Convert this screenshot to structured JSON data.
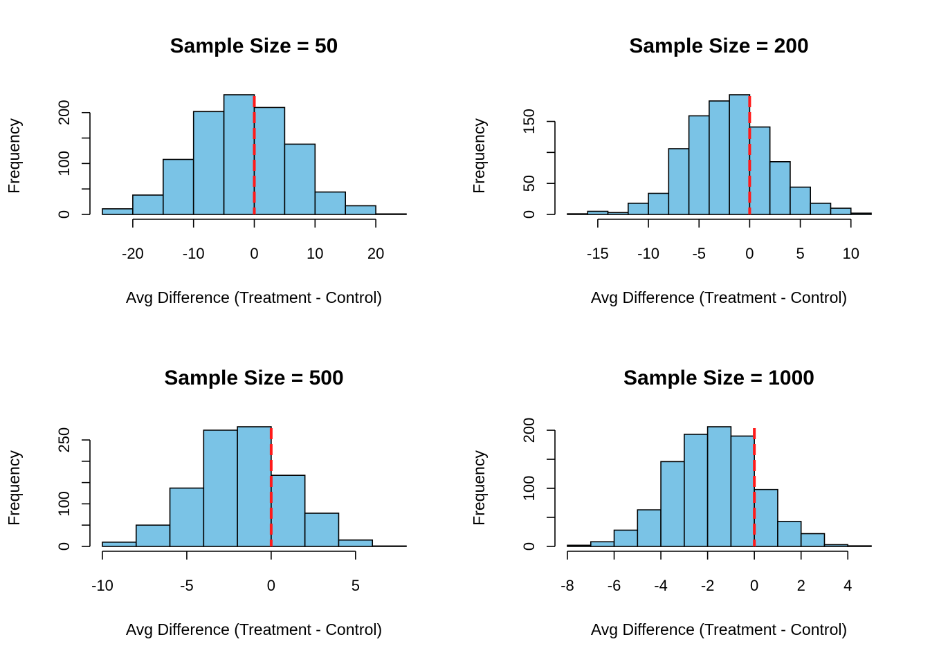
{
  "chart_data": [
    {
      "type": "bar",
      "title": "Sample Size = 50",
      "xlabel": "Avg Difference (Treatment - Control)",
      "ylabel": "Frequency",
      "bin_edges": [
        -25,
        -20,
        -15,
        -10,
        -5,
        0,
        5,
        10,
        15,
        20,
        25
      ],
      "values": [
        11,
        38,
        108,
        202,
        235,
        210,
        138,
        44,
        17,
        1
      ],
      "xticks": [
        -20,
        -10,
        0,
        10,
        20
      ],
      "yticks": [
        0,
        100,
        200
      ],
      "yminor": [
        50,
        150
      ],
      "xlim": [
        -25,
        25
      ],
      "ylim": [
        0,
        235
      ],
      "reference_line": 0
    },
    {
      "type": "bar",
      "title": "Sample Size = 200",
      "xlabel": "Avg Difference (Treatment - Control)",
      "ylabel": "Frequency",
      "bin_edges": [
        -18,
        -16,
        -14,
        -12,
        -10,
        -8,
        -6,
        -4,
        -2,
        0,
        2,
        4,
        6,
        8,
        10,
        12
      ],
      "values": [
        1,
        5,
        3,
        18,
        34,
        106,
        159,
        183,
        193,
        141,
        85,
        44,
        18,
        10,
        2
      ],
      "xticks": [
        -15,
        -10,
        -5,
        0,
        5,
        10
      ],
      "yticks": [
        0,
        50,
        150
      ],
      "yminor": [
        100
      ],
      "xlim": [
        -18,
        12
      ],
      "ylim": [
        0,
        193
      ],
      "reference_line": 0
    },
    {
      "type": "bar",
      "title": "Sample Size = 500",
      "xlabel": "Avg Difference (Treatment - Control)",
      "ylabel": "Frequency",
      "bin_edges": [
        -10,
        -8,
        -6,
        -4,
        -2,
        0,
        2,
        4,
        6,
        8
      ],
      "values": [
        10,
        50,
        137,
        273,
        281,
        167,
        78,
        15,
        1
      ],
      "xticks": [
        -10,
        -5,
        0,
        5
      ],
      "yticks": [
        0,
        100,
        250
      ],
      "yminor": [
        50,
        150,
        200
      ],
      "xlim": [
        -10,
        8
      ],
      "ylim": [
        0,
        281
      ],
      "reference_line": 0
    },
    {
      "type": "bar",
      "title": "Sample Size = 1000",
      "xlabel": "Avg Difference (Treatment - Control)",
      "ylabel": "Frequency",
      "bin_edges": [
        -8,
        -7,
        -6,
        -5,
        -4,
        -3,
        -2,
        -1,
        0,
        1,
        2,
        3,
        4,
        5
      ],
      "values": [
        2,
        8,
        28,
        63,
        146,
        193,
        206,
        190,
        98,
        43,
        22,
        3,
        1
      ],
      "xticks": [
        -8,
        -6,
        -4,
        -2,
        0,
        2,
        4
      ],
      "yticks": [
        0,
        100,
        200
      ],
      "yminor": [
        50,
        150
      ],
      "xlim": [
        -8,
        5
      ],
      "ylim": [
        0,
        206
      ],
      "reference_line": 0
    }
  ],
  "colors": {
    "bar_fill": "#7ac3e6",
    "bar_stroke": "#000000",
    "reference_line": "#ff1a1a",
    "axis": "#000000"
  }
}
